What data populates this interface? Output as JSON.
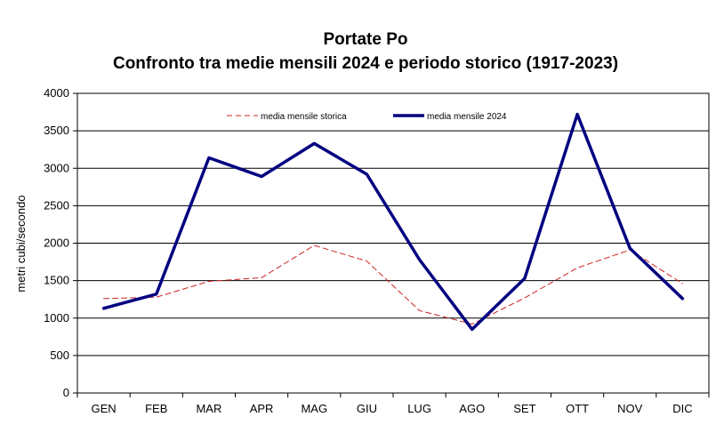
{
  "chart_data": {
    "type": "line",
    "title": "Portate Po",
    "subtitle": "Confronto tra medie mensili 2024 e periodo storico (1917-2023)",
    "xlabel": "",
    "ylabel": "metri cubi/secondo",
    "categories": [
      "GEN",
      "FEB",
      "MAR",
      "APR",
      "MAG",
      "GIU",
      "LUG",
      "AGO",
      "SET",
      "OTT",
      "NOV",
      "DIC"
    ],
    "ylim": [
      0,
      4000
    ],
    "yticks": [
      "0",
      "500",
      "1000",
      "1500",
      "2000",
      "2500",
      "3000",
      "3500",
      "4000"
    ],
    "grid": true,
    "legend_position": "top",
    "series": [
      {
        "name": "media mensile storica",
        "values": [
          1260,
          1280,
          1490,
          1540,
          1970,
          1760,
          1100,
          920,
          1270,
          1670,
          1910,
          1460
        ],
        "color": "#cc2222",
        "style": "dashed"
      },
      {
        "name": "media mensile 2024",
        "values": [
          1130,
          1320,
          3140,
          2890,
          3330,
          2920,
          1780,
          850,
          1530,
          3720,
          1930,
          1260
        ],
        "color": "#000080",
        "style": "solid"
      }
    ]
  }
}
